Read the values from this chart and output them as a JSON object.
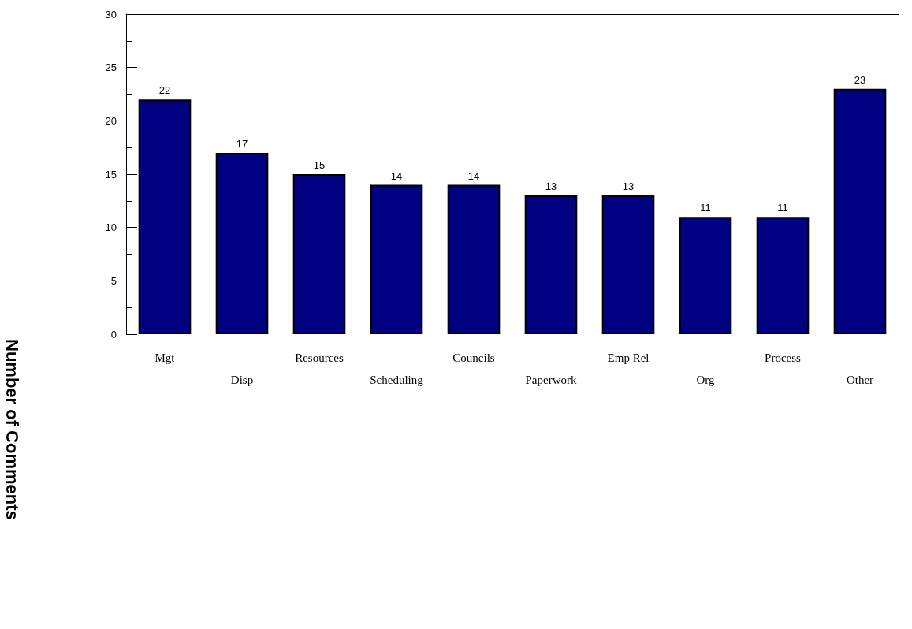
{
  "chart_data": {
    "type": "bar",
    "ylabel": "Number of Comments",
    "categories": [
      "Mgt",
      "Disp",
      "Resources",
      "Scheduling",
      "Councils",
      "Paperwork",
      "Emp Rel",
      "Org",
      "Process",
      "Other"
    ],
    "values": [
      22,
      17,
      15,
      14,
      14,
      13,
      13,
      11,
      11,
      23
    ],
    "color": "#000080",
    "ylim": [
      0,
      30
    ],
    "yticks": [
      0,
      5,
      10,
      15,
      20,
      25,
      30
    ],
    "data_labels": true,
    "grid": false
  }
}
